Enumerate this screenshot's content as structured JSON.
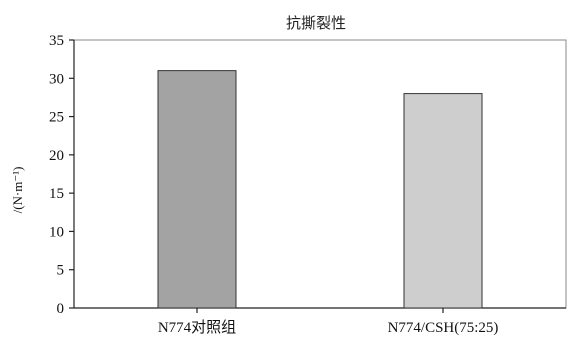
{
  "chart_data": {
    "type": "bar",
    "title": "抗撕裂性",
    "ylabel": "/(N·m⁻¹)",
    "xlabel": "",
    "categories": [
      "N774对照组",
      "N774/CSH(75:25)"
    ],
    "values": [
      31,
      28
    ],
    "ylim": [
      0,
      35
    ],
    "yticks": [
      "0",
      "5",
      "10",
      "15",
      "20",
      "25",
      "30",
      "35"
    ],
    "colors": [
      "#a3a3a3",
      "#cecece"
    ],
    "grid": false
  }
}
